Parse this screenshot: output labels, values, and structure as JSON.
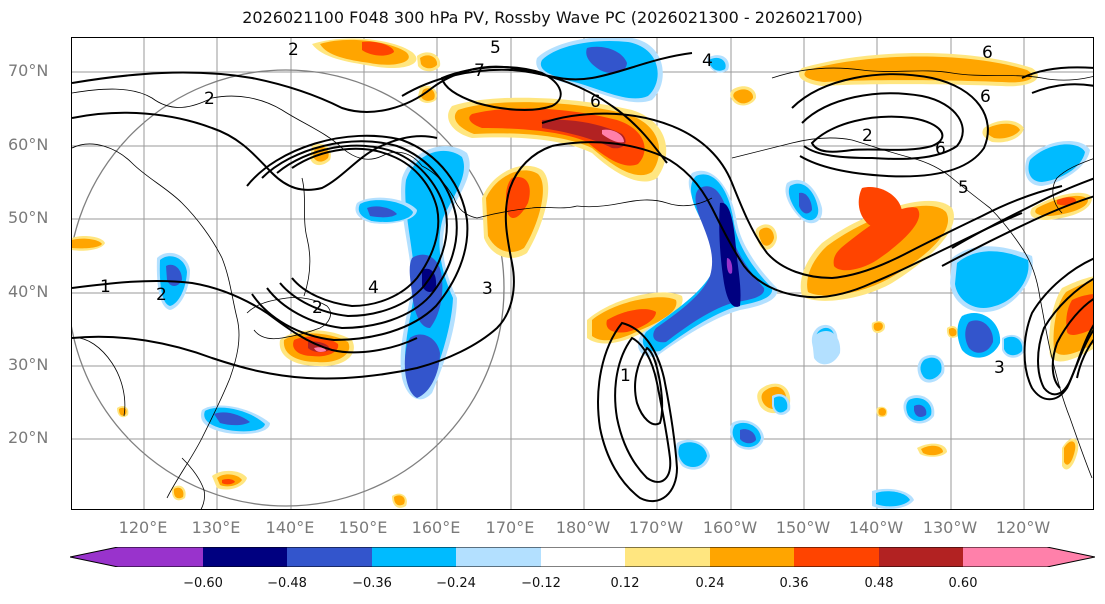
{
  "title": "2026021100 F048 300 hPa PV, Rossby Wave PC (2026021300 - 2026021700)",
  "lat_labels": [
    "70°N",
    "60°N",
    "50°N",
    "40°N",
    "30°N",
    "20°N"
  ],
  "lon_labels": [
    "120°E",
    "130°E",
    "140°E",
    "150°E",
    "160°E",
    "170°E",
    "180°W",
    "170°W",
    "160°W",
    "150°W",
    "140°W",
    "130°W",
    "120°W"
  ],
  "contour_labels": [
    "5",
    "7",
    "6",
    "6",
    "2",
    "2",
    "2",
    "1",
    "2",
    "2",
    "4",
    "3",
    "3",
    "4",
    "5",
    "6",
    "6",
    "1"
  ],
  "colorbar": {
    "ticks": [
      "−0.60",
      "−0.48",
      "−0.36",
      "−0.24",
      "−0.12",
      "0.12",
      "0.24",
      "0.36",
      "0.48",
      "0.60"
    ],
    "colors": [
      "#9933cc",
      "#000080",
      "#3355cc",
      "#00bbff",
      "#b3e0ff",
      "#ffffff",
      "#ffe680",
      "#ffa500",
      "#ff4400",
      "#b22222",
      "#ff80aa"
    ]
  },
  "palette": {
    "neg_strong": "#000080",
    "neg_mid": "#3355cc",
    "neg_light": "#00bbff",
    "neg_pale": "#b3e0ff",
    "pos_pale": "#ffe680",
    "pos_mid": "#ffa500",
    "pos_strong": "#ff4400",
    "pos_deep": "#b22222",
    "pos_max": "#ff80aa"
  }
}
